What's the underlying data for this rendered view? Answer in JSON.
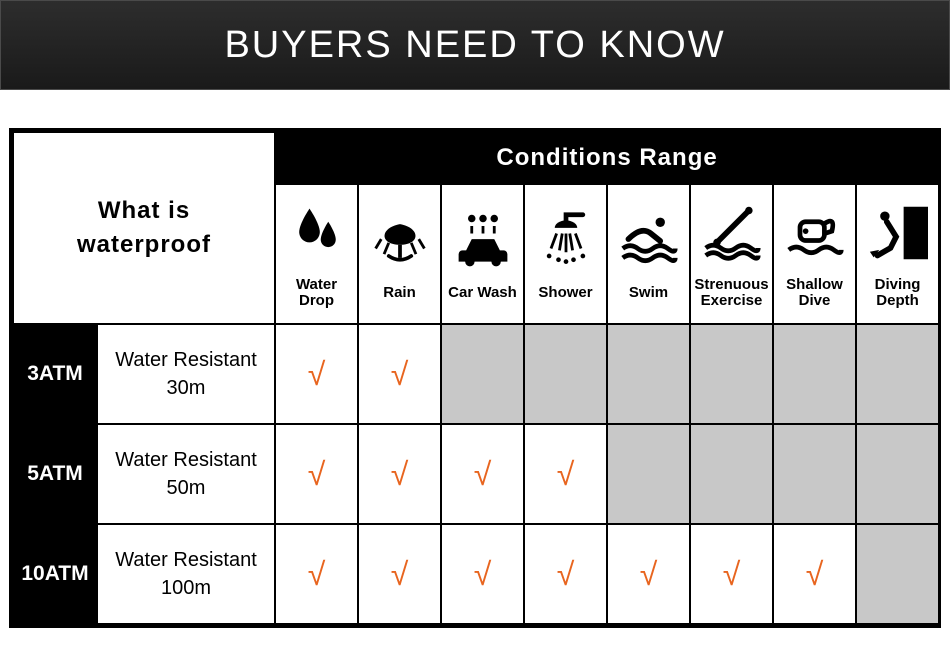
{
  "banner": {
    "title": "BUYERS NEED TO KNOW"
  },
  "corner": {
    "line1": "What is",
    "line2": "waterproof"
  },
  "conditions_header": "Conditions Range",
  "conditions": [
    {
      "label": "Water Drop",
      "icon": "water-drop"
    },
    {
      "label": "Rain",
      "icon": "rain"
    },
    {
      "label": "Car Wash",
      "icon": "car-wash"
    },
    {
      "label": "Shower",
      "icon": "shower"
    },
    {
      "label": "Swim",
      "icon": "swim"
    },
    {
      "label": "Strenuous Exercise",
      "icon": "strenuous"
    },
    {
      "label": "Shallow Dive",
      "icon": "shallow-dive"
    },
    {
      "label": "Diving Depth",
      "icon": "diving-depth"
    }
  ],
  "rows": [
    {
      "atm": "3ATM",
      "desc1": "Water Resistant",
      "desc2": "30m",
      "cells": [
        true,
        true,
        false,
        false,
        false,
        false,
        false,
        false
      ]
    },
    {
      "atm": "5ATM",
      "desc1": "Water Resistant",
      "desc2": "50m",
      "cells": [
        true,
        true,
        true,
        true,
        false,
        false,
        false,
        false
      ]
    },
    {
      "atm": "10ATM",
      "desc1": "Water Resistant",
      "desc2": "100m",
      "cells": [
        true,
        true,
        true,
        true,
        true,
        true,
        true,
        false
      ]
    }
  ],
  "colors": {
    "check": "#e8651f",
    "black": "#000000",
    "grey": "#c8c8c8",
    "white": "#ffffff"
  },
  "checkmark": "√"
}
